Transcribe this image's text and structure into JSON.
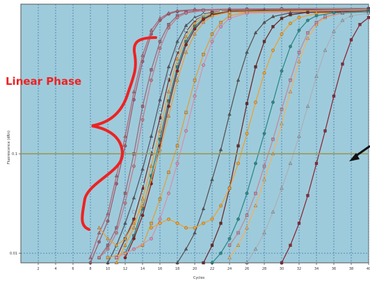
{
  "chart_data": {
    "type": "line",
    "xlabel": "Cycles",
    "ylabel": "Fluorescence (dRn)",
    "xlim": [
      0,
      40
    ],
    "y_scale": "log",
    "ylim": [
      0.008,
      3.2
    ],
    "x_ticks": [
      "2",
      "4",
      "6",
      "8",
      "10",
      "12",
      "14",
      "16",
      "18",
      "20",
      "22",
      "24",
      "26",
      "28",
      "30",
      "32",
      "34",
      "36",
      "38",
      "40"
    ],
    "y_ticks": [
      {
        "value": 0.01,
        "label": "0.01"
      },
      {
        "value": 0.1,
        "label": "0.1"
      }
    ],
    "grid": true,
    "threshold": 0.1,
    "annotations": {
      "linear_phase_label": "Linear Phase"
    },
    "colors": {
      "plot_bg": "#9ecbdb",
      "grid": "#3c78ae",
      "threshold": "#999955",
      "annotation": "#ee2222",
      "arrow": "#111111"
    },
    "series": [
      {
        "color": "#a05a70",
        "values": [
          [
            8,
            0.008
          ],
          [
            9,
            0.013
          ],
          [
            10,
            0.021
          ],
          [
            11,
            0.05
          ],
          [
            12,
            0.12
          ],
          [
            13,
            0.35
          ],
          [
            14,
            0.85
          ],
          [
            15,
            1.6
          ],
          [
            16,
            2.2
          ],
          [
            17,
            2.55
          ],
          [
            18,
            2.7
          ],
          [
            20,
            2.8
          ],
          [
            24,
            2.85
          ],
          [
            30,
            2.88
          ],
          [
            40,
            2.9
          ]
        ]
      },
      {
        "color": "#b06878",
        "values": [
          [
            8,
            0.009
          ],
          [
            9,
            0.016
          ],
          [
            10,
            0.025
          ],
          [
            11,
            0.06
          ],
          [
            12,
            0.15
          ],
          [
            13,
            0.42
          ],
          [
            14,
            0.98
          ],
          [
            15,
            1.75
          ],
          [
            16,
            2.3
          ],
          [
            17,
            2.6
          ],
          [
            18,
            2.75
          ],
          [
            20,
            2.82
          ],
          [
            26,
            2.86
          ],
          [
            40,
            2.9
          ]
        ]
      },
      {
        "color": "#9a6a7c",
        "values": [
          [
            9,
            0.009
          ],
          [
            10,
            0.012
          ],
          [
            11,
            0.018
          ],
          [
            12,
            0.04
          ],
          [
            13,
            0.1
          ],
          [
            14,
            0.3
          ],
          [
            15,
            0.7
          ],
          [
            16,
            1.35
          ],
          [
            17,
            2.0
          ],
          [
            18,
            2.45
          ],
          [
            19,
            2.65
          ],
          [
            21,
            2.78
          ],
          [
            26,
            2.84
          ],
          [
            40,
            2.88
          ]
        ]
      },
      {
        "color": "#c27a8a",
        "values": [
          [
            9,
            0.009
          ],
          [
            10,
            0.011
          ],
          [
            11,
            0.016
          ],
          [
            12,
            0.032
          ],
          [
            13,
            0.075
          ],
          [
            14,
            0.22
          ],
          [
            15,
            0.55
          ],
          [
            16,
            1.15
          ],
          [
            17,
            1.85
          ],
          [
            18,
            2.35
          ],
          [
            19,
            2.6
          ],
          [
            21,
            2.76
          ],
          [
            30,
            2.85
          ],
          [
            40,
            2.88
          ]
        ]
      },
      {
        "color": "#555566",
        "values": [
          [
            10,
            0.008
          ],
          [
            11,
            0.012
          ],
          [
            12,
            0.02
          ],
          [
            13,
            0.036
          ],
          [
            14,
            0.07
          ],
          [
            15,
            0.15
          ],
          [
            16,
            0.35
          ],
          [
            17,
            0.75
          ],
          [
            18,
            1.35
          ],
          [
            19,
            1.95
          ],
          [
            20,
            2.35
          ],
          [
            21,
            2.55
          ],
          [
            23,
            2.72
          ],
          [
            28,
            2.8
          ],
          [
            40,
            2.85
          ]
        ]
      },
      {
        "color": "#7a2a2a",
        "values": [
          [
            11,
            0.009
          ],
          [
            12,
            0.014
          ],
          [
            13,
            0.022
          ],
          [
            14,
            0.045
          ],
          [
            15,
            0.1
          ],
          [
            16,
            0.23
          ],
          [
            17,
            0.55
          ],
          [
            18,
            1.05
          ],
          [
            19,
            1.7
          ],
          [
            20,
            2.2
          ],
          [
            21,
            2.5
          ],
          [
            22,
            2.65
          ],
          [
            24,
            2.75
          ],
          [
            40,
            2.85
          ]
        ]
      },
      {
        "color": "#a8d8e0",
        "values": [
          [
            11,
            0.011
          ],
          [
            12,
            0.016
          ],
          [
            13,
            0.026
          ],
          [
            14,
            0.05
          ],
          [
            15,
            0.11
          ],
          [
            16,
            0.26
          ],
          [
            17,
            0.6
          ],
          [
            18,
            1.1
          ],
          [
            19,
            1.75
          ],
          [
            20,
            2.25
          ],
          [
            21,
            2.5
          ],
          [
            23,
            2.7
          ],
          [
            40,
            2.84
          ]
        ]
      },
      {
        "color": "#f0a030",
        "values": [
          [
            11,
            0.008
          ],
          [
            12,
            0.012
          ],
          [
            13,
            0.018
          ],
          [
            14,
            0.035
          ],
          [
            15,
            0.075
          ],
          [
            16,
            0.17
          ],
          [
            17,
            0.42
          ],
          [
            18,
            0.9
          ],
          [
            19,
            1.5
          ],
          [
            20,
            2.05
          ],
          [
            21,
            2.4
          ],
          [
            22,
            2.6
          ],
          [
            24,
            2.72
          ],
          [
            40,
            2.82
          ]
        ]
      },
      {
        "color": "#2f7f7f",
        "values": [
          [
            12,
            0.01
          ],
          [
            13,
            0.015
          ],
          [
            14,
            0.028
          ],
          [
            15,
            0.06
          ],
          [
            16,
            0.14
          ],
          [
            17,
            0.34
          ],
          [
            18,
            0.75
          ],
          [
            19,
            1.35
          ],
          [
            20,
            1.9
          ],
          [
            21,
            2.3
          ],
          [
            22,
            2.55
          ],
          [
            24,
            2.7
          ],
          [
            40,
            2.82
          ]
        ]
      },
      {
        "color": "#8a1e1e",
        "values": [
          [
            12,
            0.009
          ],
          [
            13,
            0.014
          ],
          [
            14,
            0.024
          ],
          [
            15,
            0.05
          ],
          [
            16,
            0.12
          ],
          [
            17,
            0.3
          ],
          [
            18,
            0.68
          ],
          [
            19,
            1.25
          ],
          [
            20,
            1.8
          ],
          [
            21,
            2.25
          ],
          [
            22,
            2.5
          ],
          [
            24,
            2.68
          ],
          [
            40,
            2.8
          ]
        ]
      },
      {
        "color": "#e8a040",
        "values": [
          [
            9,
            0.018
          ],
          [
            10,
            0.014
          ],
          [
            11,
            0.012
          ],
          [
            12,
            0.014
          ],
          [
            13,
            0.02
          ],
          [
            14,
            0.03
          ],
          [
            15,
            0.055
          ],
          [
            16,
            0.11
          ],
          [
            17,
            0.24
          ],
          [
            18,
            0.55
          ],
          [
            19,
            1.05
          ],
          [
            20,
            1.6
          ],
          [
            21,
            2.1
          ],
          [
            22,
            2.45
          ],
          [
            24,
            2.66
          ],
          [
            40,
            2.8
          ]
        ]
      },
      {
        "color": "#e0a040",
        "values": [
          [
            10,
            0.009
          ],
          [
            12,
            0.01
          ],
          [
            14,
            0.012
          ],
          [
            15,
            0.02
          ],
          [
            16,
            0.035
          ],
          [
            17,
            0.065
          ],
          [
            18,
            0.12
          ],
          [
            19,
            0.26
          ],
          [
            20,
            0.55
          ],
          [
            21,
            1.0
          ],
          [
            22,
            1.6
          ],
          [
            23,
            2.1
          ],
          [
            24,
            2.45
          ],
          [
            26,
            2.65
          ],
          [
            40,
            2.78
          ]
        ]
      },
      {
        "color": "#d890b0",
        "values": [
          [
            11,
            0.009
          ],
          [
            13,
            0.011
          ],
          [
            15,
            0.014
          ],
          [
            16,
            0.022
          ],
          [
            17,
            0.04
          ],
          [
            18,
            0.08
          ],
          [
            19,
            0.17
          ],
          [
            20,
            0.38
          ],
          [
            21,
            0.78
          ],
          [
            22,
            1.35
          ],
          [
            23,
            1.9
          ],
          [
            24,
            2.3
          ],
          [
            26,
            2.6
          ],
          [
            40,
            2.78
          ]
        ]
      },
      {
        "color": "#555555",
        "values": [
          [
            18,
            0.008
          ],
          [
            19,
            0.011
          ],
          [
            20,
            0.016
          ],
          [
            21,
            0.028
          ],
          [
            22,
            0.055
          ],
          [
            23,
            0.11
          ],
          [
            24,
            0.25
          ],
          [
            25,
            0.55
          ],
          [
            26,
            1.05
          ],
          [
            27,
            1.65
          ],
          [
            28,
            2.1
          ],
          [
            29,
            2.4
          ],
          [
            31,
            2.62
          ],
          [
            40,
            2.75
          ]
        ]
      },
      {
        "color": "#6a2a2a",
        "values": [
          [
            21,
            0.008
          ],
          [
            22,
            0.012
          ],
          [
            23,
            0.02
          ],
          [
            24,
            0.045
          ],
          [
            25,
            0.12
          ],
          [
            26,
            0.32
          ],
          [
            27,
            0.75
          ],
          [
            28,
            1.35
          ],
          [
            29,
            1.9
          ],
          [
            30,
            2.3
          ],
          [
            31,
            2.5
          ],
          [
            33,
            2.65
          ],
          [
            40,
            2.72
          ]
        ]
      },
      {
        "color": "#f0a030",
        "values": [
          [
            15,
            0.018
          ],
          [
            16,
            0.02
          ],
          [
            17,
            0.022
          ],
          [
            18,
            0.02
          ],
          [
            19,
            0.018
          ],
          [
            20,
            0.018
          ],
          [
            21,
            0.02
          ],
          [
            22,
            0.022
          ],
          [
            23,
            0.03
          ],
          [
            24,
            0.045
          ],
          [
            25,
            0.08
          ],
          [
            26,
            0.16
          ],
          [
            27,
            0.33
          ],
          [
            28,
            0.65
          ],
          [
            29,
            1.1
          ],
          [
            30,
            1.6
          ],
          [
            31,
            2.05
          ],
          [
            32,
            2.35
          ],
          [
            34,
            2.58
          ],
          [
            40,
            2.7
          ]
        ]
      },
      {
        "color": "#f4b060",
        "values": [
          [
            24,
            0.009
          ],
          [
            25,
            0.012
          ],
          [
            26,
            0.018
          ],
          [
            27,
            0.03
          ],
          [
            28,
            0.055
          ],
          [
            29,
            0.1
          ],
          [
            30,
            0.2
          ],
          [
            31,
            0.42
          ],
          [
            32,
            0.85
          ],
          [
            33,
            1.45
          ],
          [
            34,
            2.0
          ],
          [
            35,
            2.35
          ],
          [
            37,
            2.6
          ],
          [
            40,
            2.7
          ]
        ]
      },
      {
        "color": "#c08aa0",
        "values": [
          [
            24,
            0.012
          ],
          [
            25,
            0.016
          ],
          [
            26,
            0.024
          ],
          [
            27,
            0.04
          ],
          [
            28,
            0.075
          ],
          [
            29,
            0.14
          ],
          [
            30,
            0.28
          ],
          [
            31,
            0.55
          ],
          [
            32,
            1.05
          ],
          [
            33,
            1.65
          ],
          [
            34,
            2.1
          ],
          [
            35,
            2.4
          ],
          [
            37,
            2.6
          ],
          [
            40,
            2.7
          ]
        ]
      },
      {
        "color": "#2a8a8a",
        "values": [
          [
            22,
            0.008
          ],
          [
            23,
            0.01
          ],
          [
            24,
            0.014
          ],
          [
            25,
            0.022
          ],
          [
            26,
            0.04
          ],
          [
            27,
            0.08
          ],
          [
            28,
            0.16
          ],
          [
            29,
            0.33
          ],
          [
            30,
            0.68
          ],
          [
            31,
            1.2
          ],
          [
            32,
            1.75
          ],
          [
            33,
            2.2
          ],
          [
            34,
            2.45
          ],
          [
            36,
            2.62
          ],
          [
            40,
            2.68
          ]
        ]
      },
      {
        "color": "#aab0b8",
        "values": [
          [
            26,
            0.008
          ],
          [
            27,
            0.011
          ],
          [
            28,
            0.016
          ],
          [
            29,
            0.026
          ],
          [
            30,
            0.045
          ],
          [
            31,
            0.08
          ],
          [
            32,
            0.15
          ],
          [
            33,
            0.3
          ],
          [
            34,
            0.6
          ],
          [
            35,
            1.1
          ],
          [
            36,
            1.7
          ],
          [
            37,
            2.2
          ],
          [
            38,
            2.45
          ],
          [
            40,
            2.6
          ]
        ]
      },
      {
        "color": "#8a2a3a",
        "values": [
          [
            30,
            0.008
          ],
          [
            31,
            0.012
          ],
          [
            32,
            0.02
          ],
          [
            33,
            0.038
          ],
          [
            34,
            0.08
          ],
          [
            35,
            0.17
          ],
          [
            36,
            0.38
          ],
          [
            37,
            0.8
          ],
          [
            38,
            1.4
          ],
          [
            39,
            2.0
          ],
          [
            40,
            2.35
          ]
        ]
      }
    ]
  }
}
